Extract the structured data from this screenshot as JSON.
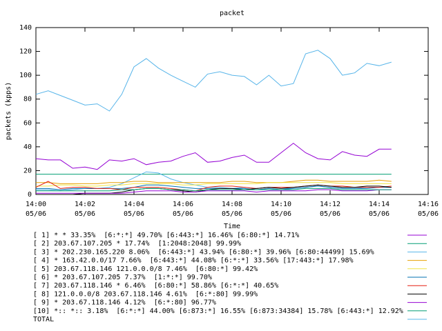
{
  "chart_data": {
    "type": "line",
    "title": "packet",
    "x_label": "Time",
    "y_label": "packets (kpps)",
    "x": [
      "14:00:00",
      "14:00:30",
      "14:01:00",
      "14:01:30",
      "14:02:00",
      "14:02:30",
      "14:03:00",
      "14:03:30",
      "14:04:00",
      "14:04:30",
      "14:05:00",
      "14:05:30",
      "14:06:00",
      "14:06:30",
      "14:07:00",
      "14:07:30",
      "14:08:00",
      "14:08:30",
      "14:09:00",
      "14:09:30",
      "14:10:00",
      "14:10:30",
      "14:11:00",
      "14:11:30",
      "14:12:00",
      "14:12:30",
      "14:13:00",
      "14:13:30",
      "14:14:00",
      "14:14:30"
    ],
    "xlim": [
      "14:00",
      "14:16"
    ],
    "xticks": [
      {
        "value": "14:00",
        "label": "14:00",
        "date": "05/06"
      },
      {
        "value": "14:02",
        "label": "14:02",
        "date": "05/06"
      },
      {
        "value": "14:04",
        "label": "14:04",
        "date": "05/06"
      },
      {
        "value": "14:06",
        "label": "14:06",
        "date": "05/06"
      },
      {
        "value": "14:08",
        "label": "14:08",
        "date": "05/06"
      },
      {
        "value": "14:10",
        "label": "14:10",
        "date": "05/06"
      },
      {
        "value": "14:12",
        "label": "14:12",
        "date": "05/06"
      },
      {
        "value": "14:14",
        "label": "14:14",
        "date": "05/06"
      },
      {
        "value": "14:16",
        "label": "14:16",
        "date": "05/06"
      }
    ],
    "ylim": [
      0,
      140
    ],
    "yticks": [
      0,
      20,
      40,
      60,
      80,
      100,
      120,
      140
    ],
    "series": [
      {
        "name": "[ 1] * * 33.35%  [6:*:*] 49.70% [6:443:*] 16.46% [6:80:*] 14.71%",
        "color": "#9400d3",
        "values": [
          30,
          29,
          29,
          22,
          23,
          21,
          29,
          28,
          30,
          25,
          27,
          28,
          32,
          35,
          27,
          28,
          31,
          33,
          27,
          27,
          35,
          43,
          35,
          30,
          29,
          36,
          33,
          32,
          38,
          38
        ]
      },
      {
        "name": "[ 2] 203.67.107.205 * 17.74%  [1:2048:2048] 99.99%",
        "color": "#009e73",
        "values": [
          17,
          17,
          17,
          17,
          17,
          17,
          17,
          17,
          17,
          17,
          17,
          17,
          17,
          17,
          17,
          17,
          17,
          17,
          17,
          17,
          17,
          17,
          17,
          17,
          17,
          17,
          17,
          17,
          17,
          17
        ]
      },
      {
        "name": "[ 3] * 202.230.165.220 8.06%  [6:443:*] 43.94% [6:80:*] 39.96% [6:80:44499] 15.69%",
        "color": "#56b4e9",
        "values": [
          4,
          4,
          3,
          4,
          5,
          5,
          6,
          9,
          14,
          19,
          18,
          13,
          10,
          8,
          6,
          6,
          5,
          6,
          5,
          6,
          5,
          5,
          6,
          7,
          6,
          5,
          5,
          6,
          6,
          6
        ]
      },
      {
        "name": "[ 4] * 163.42.0.0/17 7.66%  [6:443:*] 44.08% [6:*:*] 33.56% [17:443:*] 17.98%",
        "color": "#e69f00",
        "values": [
          10,
          10,
          9,
          9,
          9,
          9,
          10,
          10,
          11,
          11,
          10,
          10,
          10,
          10,
          10,
          10,
          11,
          11,
          10,
          10,
          10,
          11,
          12,
          12,
          11,
          11,
          11,
          11,
          12,
          11
        ]
      },
      {
        "name": "[ 5] 203.67.118.146 121.0.0.0/8 7.46%  [6:80:*] 99.42%",
        "color": "#f0e442",
        "values": [
          7,
          7,
          8,
          8,
          7,
          7,
          8,
          8,
          9,
          9,
          9,
          9,
          8,
          8,
          9,
          9,
          9,
          9,
          9,
          10,
          10,
          10,
          10,
          10,
          10,
          9,
          9,
          9,
          9,
          9
        ]
      },
      {
        "name": "[ 6] * 203.67.107.205 7.37%  [1:*:*] 99.70%",
        "color": "#0072b2",
        "values": [
          5,
          5,
          4,
          5,
          5,
          5,
          5,
          5,
          6,
          8,
          8,
          7,
          6,
          5,
          5,
          5,
          5,
          5,
          4,
          5,
          4,
          5,
          6,
          7,
          6,
          5,
          5,
          5,
          6,
          6
        ]
      },
      {
        "name": "[ 7] 203.67.118.146 * 6.46%  [6:80:*] 58.86% [6:*:*] 40.65%",
        "color": "#e51e10",
        "values": [
          6,
          11,
          5,
          6,
          6,
          5,
          5,
          4,
          6,
          6,
          6,
          5,
          4,
          3,
          6,
          7,
          7,
          6,
          5,
          6,
          6,
          6,
          7,
          8,
          7,
          7,
          6,
          6,
          6,
          7
        ]
      },
      {
        "name": "[ 8] 121.0.0.0/8 203.67.118.146 4.61%  [6:*:80] 99.99%",
        "color": "#000000",
        "values": [
          0,
          0,
          0,
          0,
          1,
          1,
          1,
          2,
          4,
          5,
          5,
          4,
          3,
          2,
          4,
          5,
          5,
          4,
          5,
          6,
          5,
          6,
          7,
          8,
          7,
          6,
          6,
          7,
          7,
          6
        ]
      },
      {
        "name": "[ 9] * 203.67.118.146 4.12%  [6:*:80] 96.77%",
        "color": "#9400d3",
        "values": [
          1,
          1,
          1,
          1,
          1,
          1,
          1,
          1,
          2,
          3,
          3,
          3,
          2,
          2,
          3,
          3,
          3,
          3,
          2,
          3,
          3,
          3,
          3,
          4,
          4,
          3,
          3,
          3,
          4,
          4
        ]
      },
      {
        "name": "[10] *:: *:: 3.18%  [6:*:*] 44.00% [6:873:*] 16.55% [6:873:34384] 15.78% [6:443:*] 12.92%",
        "color": "#009e73",
        "values": [
          3,
          3,
          3,
          3,
          3,
          3,
          3,
          4,
          4,
          5,
          5,
          4,
          4,
          3,
          4,
          4,
          4,
          4,
          4,
          4,
          4,
          4,
          5,
          5,
          5,
          4,
          4,
          4,
          4,
          4
        ]
      },
      {
        "name": "TOTAL",
        "color": "#56b4e9",
        "values": [
          84,
          87,
          83,
          79,
          75,
          76,
          70,
          84,
          107,
          114,
          106,
          100,
          95,
          90,
          101,
          103,
          100,
          99,
          92,
          100,
          91,
          93,
          118,
          121,
          114,
          100,
          102,
          110,
          108,
          111
        ]
      }
    ]
  }
}
